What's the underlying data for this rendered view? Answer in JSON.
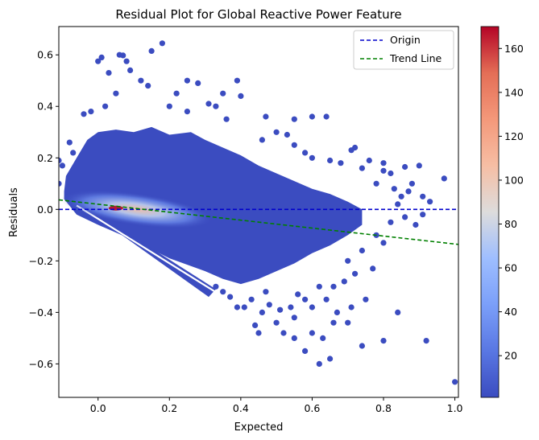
{
  "chart_data": {
    "type": "scatter",
    "title": "Residual Plot for Global Reactive Power Feature",
    "xlabel": "Expected",
    "ylabel": "Residuals",
    "xlim": [
      -0.11,
      1.01
    ],
    "ylim": [
      -0.73,
      0.71
    ],
    "xticks": [
      0.0,
      0.2,
      0.4,
      0.6,
      0.8,
      1.0
    ],
    "xtick_labels": [
      "0.0",
      "0.2",
      "0.4",
      "0.6",
      "0.8",
      "1.0"
    ],
    "yticks": [
      -0.6,
      -0.4,
      -0.2,
      0.0,
      0.2,
      0.4,
      0.6
    ],
    "ytick_labels": [
      "−0.6",
      "−0.4",
      "−0.2",
      "0.0",
      "0.2",
      "0.4",
      "0.6"
    ],
    "grid": false,
    "legend_position": "top-right",
    "lines": [
      {
        "name": "Origin",
        "style": "dashed",
        "color": "#0000cc",
        "points": [
          [
            -0.11,
            0.0
          ],
          [
            1.01,
            0.0
          ]
        ]
      },
      {
        "name": "Trend Line",
        "style": "dashed",
        "color": "#008000",
        "points": [
          [
            -0.11,
            0.037
          ],
          [
            1.01,
            -0.136
          ]
        ]
      }
    ],
    "colorbar": {
      "min": 1,
      "max": 170,
      "ticks": [
        20,
        40,
        60,
        80,
        100,
        120,
        140,
        160
      ],
      "tick_labels": [
        "20",
        "40",
        "60",
        "80",
        "100",
        "120",
        "140",
        "160"
      ],
      "colormap": "coolwarm"
    },
    "scatter_color_low": "#3b4cc0",
    "scatter_color_high": "#b40426",
    "density_peak": [
      0.05,
      0.005
    ],
    "points": [
      [
        0.18,
        0.645
      ],
      [
        0.06,
        0.6
      ],
      [
        0.07,
        0.598
      ],
      [
        0.15,
        0.615
      ],
      [
        0.08,
        0.575
      ],
      [
        0.0,
        0.575
      ],
      [
        0.01,
        0.59
      ],
      [
        0.09,
        0.54
      ],
      [
        0.03,
        0.53
      ],
      [
        0.12,
        0.5
      ],
      [
        0.14,
        0.48
      ],
      [
        0.25,
        0.5
      ],
      [
        0.28,
        0.49
      ],
      [
        0.39,
        0.5
      ],
      [
        0.22,
        0.45
      ],
      [
        0.35,
        0.45
      ],
      [
        0.4,
        0.44
      ],
      [
        0.05,
        0.45
      ],
      [
        0.31,
        0.41
      ],
      [
        0.2,
        0.4
      ],
      [
        0.33,
        0.4
      ],
      [
        0.25,
        0.38
      ],
      [
        0.02,
        0.4
      ],
      [
        0.36,
        0.35
      ],
      [
        0.47,
        0.36
      ],
      [
        0.55,
        0.35
      ],
      [
        0.6,
        0.36
      ],
      [
        0.64,
        0.36
      ],
      [
        0.5,
        0.3
      ],
      [
        0.53,
        0.29
      ],
      [
        0.55,
        0.25
      ],
      [
        0.46,
        0.27
      ],
      [
        0.58,
        0.22
      ],
      [
        0.6,
        0.2
      ],
      [
        0.65,
        0.19
      ],
      [
        0.68,
        0.18
      ],
      [
        0.71,
        0.23
      ],
      [
        0.72,
        0.24
      ],
      [
        0.74,
        0.16
      ],
      [
        0.76,
        0.19
      ],
      [
        0.8,
        0.18
      ],
      [
        0.82,
        0.14
      ],
      [
        0.86,
        0.165
      ],
      [
        0.9,
        0.17
      ],
      [
        0.8,
        0.15
      ],
      [
        0.78,
        0.1
      ],
      [
        0.83,
        0.08
      ],
      [
        0.87,
        0.07
      ],
      [
        0.88,
        0.1
      ],
      [
        0.85,
        0.05
      ],
      [
        0.91,
        0.05
      ],
      [
        0.93,
        0.03
      ],
      [
        0.97,
        0.12
      ],
      [
        -0.11,
        0.19
      ],
      [
        -0.11,
        0.1
      ],
      [
        -0.1,
        0.17
      ],
      [
        -0.08,
        0.26
      ],
      [
        -0.07,
        0.22
      ],
      [
        -0.04,
        0.37
      ],
      [
        -0.02,
        0.38
      ],
      [
        0.84,
        0.02
      ],
      [
        0.86,
        -0.03
      ],
      [
        0.89,
        -0.06
      ],
      [
        0.91,
        -0.02
      ],
      [
        0.82,
        -0.05
      ],
      [
        0.78,
        -0.1
      ],
      [
        0.8,
        -0.13
      ],
      [
        0.74,
        -0.16
      ],
      [
        0.7,
        -0.2
      ],
      [
        0.72,
        -0.25
      ],
      [
        0.77,
        -0.23
      ],
      [
        0.66,
        -0.3
      ],
      [
        0.62,
        -0.3
      ],
      [
        0.64,
        -0.35
      ],
      [
        0.69,
        -0.28
      ],
      [
        0.58,
        -0.35
      ],
      [
        0.6,
        -0.38
      ],
      [
        0.54,
        -0.38
      ],
      [
        0.55,
        -0.42
      ],
      [
        0.51,
        -0.39
      ],
      [
        0.5,
        -0.44
      ],
      [
        0.48,
        -0.37
      ],
      [
        0.46,
        -0.4
      ],
      [
        0.44,
        -0.45
      ],
      [
        0.41,
        -0.38
      ],
      [
        0.39,
        -0.38
      ],
      [
        0.37,
        -0.34
      ],
      [
        0.35,
        -0.32
      ],
      [
        0.33,
        -0.3
      ],
      [
        0.6,
        -0.48
      ],
      [
        0.66,
        -0.44
      ],
      [
        0.7,
        -0.44
      ],
      [
        0.63,
        -0.5
      ],
      [
        0.55,
        -0.5
      ],
      [
        0.52,
        -0.48
      ],
      [
        0.45,
        -0.48
      ],
      [
        0.58,
        -0.55
      ],
      [
        0.62,
        -0.6
      ],
      [
        0.65,
        -0.58
      ],
      [
        0.74,
        -0.53
      ],
      [
        0.8,
        -0.51
      ],
      [
        0.92,
        -0.51
      ],
      [
        0.84,
        -0.4
      ],
      [
        0.75,
        -0.35
      ],
      [
        0.71,
        -0.38
      ],
      [
        1.0,
        -0.67
      ],
      [
        0.47,
        -0.32
      ],
      [
        0.43,
        -0.35
      ],
      [
        0.56,
        -0.33
      ],
      [
        0.67,
        -0.4
      ]
    ]
  }
}
